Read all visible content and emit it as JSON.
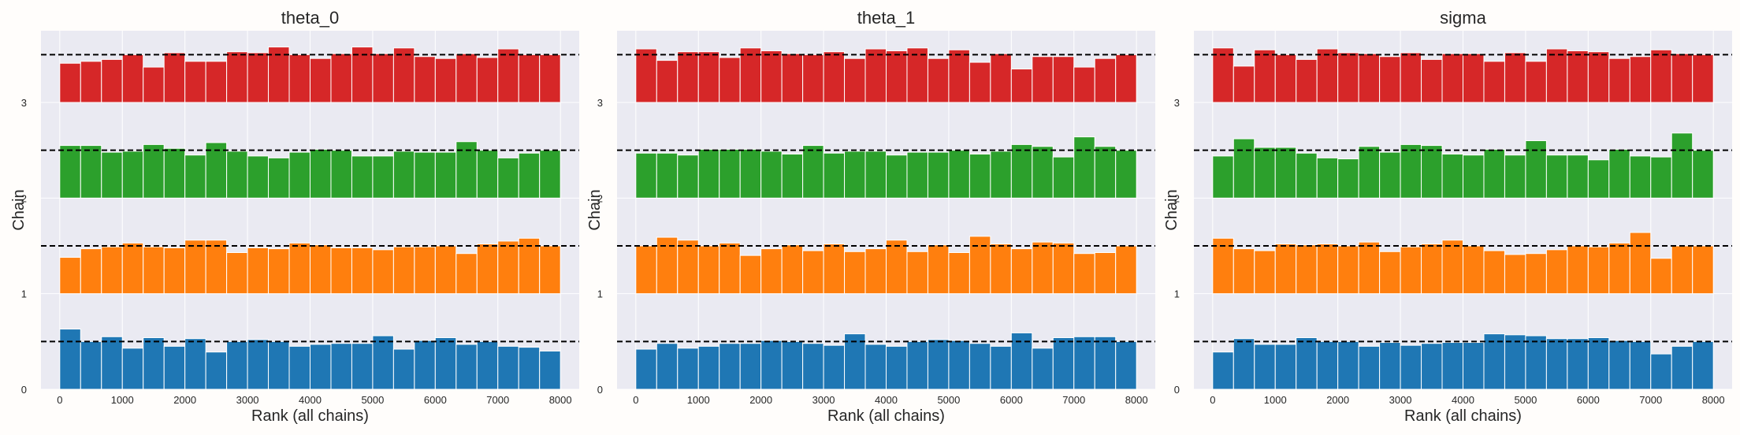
{
  "colors": {
    "background": "#fffdfb",
    "plot_bg": "#eaeaf2",
    "grid": "#ffffff",
    "reference_line": "#000000",
    "chain_0": "#1f77b4",
    "chain_1": "#ff7f0e",
    "chain_2": "#2ca02c",
    "chain_3": "#d62728"
  },
  "chart_data": [
    {
      "type": "bar",
      "subtype": "rank-histogram",
      "title": "theta_0",
      "xlabel": "Rank (all chains)",
      "ylabel": "Chain",
      "xlim": [
        -300,
        8300
      ],
      "ylim": [
        0,
        3.75
      ],
      "xticks": [
        "0",
        "1000",
        "2000",
        "3000",
        "4000",
        "5000",
        "6000",
        "7000",
        "8000"
      ],
      "yticks": [
        "0",
        "1",
        "2",
        "3"
      ],
      "grid": true,
      "bins": 24,
      "bin_edges": [
        0,
        8000
      ],
      "reference_level": 0.5,
      "chains": [
        {
          "chain": 0,
          "values": [
            0.63,
            0.5,
            0.55,
            0.43,
            0.54,
            0.45,
            0.53,
            0.39,
            0.5,
            0.52,
            0.5,
            0.45,
            0.47,
            0.48,
            0.48,
            0.56,
            0.42,
            0.51,
            0.54,
            0.47,
            0.5,
            0.45,
            0.44,
            0.4
          ]
        },
        {
          "chain": 1,
          "values": [
            0.38,
            0.47,
            0.49,
            0.53,
            0.49,
            0.48,
            0.56,
            0.56,
            0.43,
            0.48,
            0.47,
            0.53,
            0.51,
            0.48,
            0.48,
            0.46,
            0.49,
            0.49,
            0.5,
            0.42,
            0.52,
            0.55,
            0.58,
            0.5
          ]
        },
        {
          "chain": 2,
          "values": [
            0.55,
            0.55,
            0.48,
            0.49,
            0.56,
            0.52,
            0.45,
            0.58,
            0.49,
            0.44,
            0.42,
            0.48,
            0.51,
            0.5,
            0.44,
            0.44,
            0.49,
            0.48,
            0.48,
            0.59,
            0.5,
            0.42,
            0.47,
            0.5
          ]
        },
        {
          "chain": 3,
          "values": [
            0.41,
            0.43,
            0.45,
            0.5,
            0.37,
            0.52,
            0.43,
            0.43,
            0.53,
            0.52,
            0.58,
            0.5,
            0.46,
            0.51,
            0.58,
            0.51,
            0.57,
            0.48,
            0.46,
            0.51,
            0.47,
            0.56,
            0.5,
            0.5
          ]
        }
      ]
    },
    {
      "type": "bar",
      "subtype": "rank-histogram",
      "title": "theta_1",
      "xlabel": "Rank (all chains)",
      "ylabel": "Chain",
      "xlim": [
        -300,
        8300
      ],
      "ylim": [
        0,
        3.75
      ],
      "xticks": [
        "0",
        "1000",
        "2000",
        "3000",
        "4000",
        "5000",
        "6000",
        "7000",
        "8000"
      ],
      "yticks": [
        "0",
        "1",
        "2",
        "3"
      ],
      "grid": true,
      "bins": 24,
      "bin_edges": [
        0,
        8000
      ],
      "reference_level": 0.5,
      "chains": [
        {
          "chain": 0,
          "values": [
            0.42,
            0.48,
            0.43,
            0.45,
            0.48,
            0.48,
            0.51,
            0.5,
            0.48,
            0.46,
            0.58,
            0.47,
            0.45,
            0.5,
            0.52,
            0.51,
            0.48,
            0.45,
            0.59,
            0.43,
            0.54,
            0.55,
            0.55,
            0.5
          ]
        },
        {
          "chain": 1,
          "values": [
            0.5,
            0.59,
            0.56,
            0.5,
            0.53,
            0.4,
            0.47,
            0.51,
            0.45,
            0.52,
            0.44,
            0.47,
            0.56,
            0.44,
            0.51,
            0.43,
            0.6,
            0.52,
            0.47,
            0.54,
            0.53,
            0.42,
            0.43,
            0.5
          ]
        },
        {
          "chain": 2,
          "values": [
            0.47,
            0.47,
            0.45,
            0.51,
            0.51,
            0.51,
            0.49,
            0.46,
            0.55,
            0.47,
            0.49,
            0.49,
            0.45,
            0.48,
            0.48,
            0.5,
            0.46,
            0.49,
            0.56,
            0.54,
            0.43,
            0.64,
            0.54,
            0.5
          ]
        },
        {
          "chain": 3,
          "values": [
            0.56,
            0.44,
            0.53,
            0.53,
            0.47,
            0.57,
            0.54,
            0.51,
            0.5,
            0.53,
            0.46,
            0.56,
            0.54,
            0.57,
            0.46,
            0.55,
            0.42,
            0.51,
            0.35,
            0.48,
            0.48,
            0.37,
            0.46,
            0.5
          ]
        }
      ]
    },
    {
      "type": "bar",
      "subtype": "rank-histogram",
      "title": "sigma",
      "xlabel": "Rank (all chains)",
      "ylabel": "Chain",
      "xlim": [
        -300,
        8300
      ],
      "ylim": [
        0,
        3.75
      ],
      "xticks": [
        "0",
        "1000",
        "2000",
        "3000",
        "4000",
        "5000",
        "6000",
        "7000",
        "8000"
      ],
      "yticks": [
        "0",
        "1",
        "2",
        "3"
      ],
      "grid": true,
      "bins": 24,
      "bin_edges": [
        0,
        8000
      ],
      "reference_level": 0.5,
      "chains": [
        {
          "chain": 0,
          "values": [
            0.39,
            0.53,
            0.47,
            0.47,
            0.54,
            0.5,
            0.5,
            0.45,
            0.49,
            0.46,
            0.48,
            0.49,
            0.49,
            0.58,
            0.57,
            0.56,
            0.53,
            0.53,
            0.54,
            0.51,
            0.5,
            0.37,
            0.45,
            0.5
          ]
        },
        {
          "chain": 1,
          "values": [
            0.58,
            0.47,
            0.45,
            0.52,
            0.51,
            0.52,
            0.5,
            0.54,
            0.44,
            0.49,
            0.52,
            0.56,
            0.5,
            0.45,
            0.41,
            0.42,
            0.46,
            0.5,
            0.49,
            0.53,
            0.64,
            0.37,
            0.5,
            0.5
          ]
        },
        {
          "chain": 2,
          "values": [
            0.44,
            0.62,
            0.53,
            0.53,
            0.47,
            0.42,
            0.41,
            0.54,
            0.48,
            0.56,
            0.55,
            0.46,
            0.45,
            0.51,
            0.45,
            0.6,
            0.45,
            0.45,
            0.4,
            0.51,
            0.44,
            0.43,
            0.68,
            0.5
          ]
        },
        {
          "chain": 3,
          "values": [
            0.57,
            0.38,
            0.55,
            0.5,
            0.45,
            0.56,
            0.52,
            0.51,
            0.48,
            0.52,
            0.45,
            0.51,
            0.51,
            0.43,
            0.52,
            0.43,
            0.56,
            0.54,
            0.53,
            0.46,
            0.48,
            0.55,
            0.51,
            0.5
          ]
        }
      ]
    }
  ]
}
